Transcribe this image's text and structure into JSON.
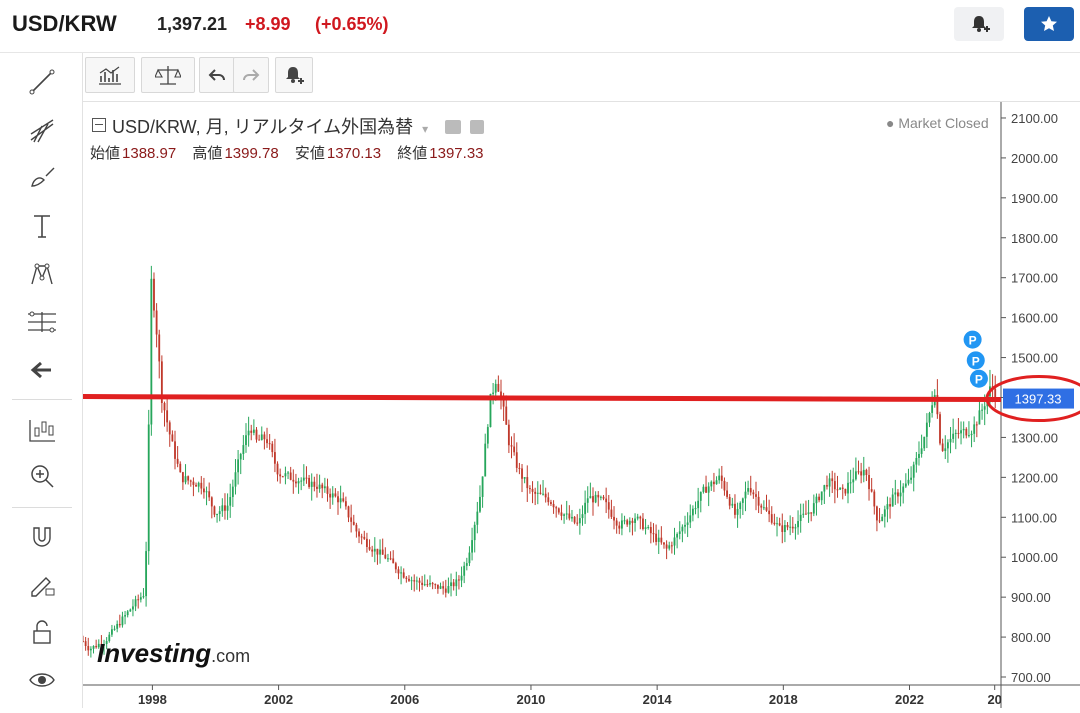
{
  "header": {
    "symbol": "USD/KRW",
    "price": "1,397.21",
    "change": "+8.99",
    "change_pct": "(+0.65%)",
    "alert_icon": "bell-plus-icon",
    "star_icon": "star-icon"
  },
  "sidebar": {
    "tools": [
      "trendline-icon",
      "fib-icon",
      "brush-icon",
      "text-icon",
      "pattern-icon",
      "measure-icon",
      "back-arrow-icon",
      "candles-icon",
      "zoom-in-icon",
      "magnet-icon",
      "pencil-lock-icon",
      "unlock-icon",
      "eye-icon"
    ]
  },
  "toolbar": {
    "buttons": [
      "indicators-icon",
      "compare-icon",
      "undo-icon",
      "redo-icon",
      "alert-add-icon"
    ]
  },
  "legend": {
    "title": "USD/KRW, 月, リアルタイム外国為替",
    "open_label": "始値",
    "open": "1388.97",
    "high_label": "高値",
    "high": "1399.78",
    "low_label": "安値",
    "low": "1370.13",
    "close_label": "終値",
    "close": "1397.33",
    "status": "Market Closed"
  },
  "logo": {
    "main": "Investing",
    "suffix": ".com"
  },
  "colors": {
    "up": "#26a65b",
    "down": "#c0392b",
    "hline": "#e02020",
    "badge": "#2f6fe4",
    "marker": "#2196f3"
  },
  "chart_data": {
    "type": "line",
    "ylim": [
      680,
      2140
    ],
    "yticks": [
      "2100.00",
      "2000.00",
      "1900.00",
      "1800.00",
      "1700.00",
      "1600.00",
      "1500.00",
      "1400.00",
      "1300.00",
      "1200.00",
      "1100.00",
      "1000.00",
      "900.00",
      "800.00",
      "700.00"
    ],
    "ytick_values": [
      2100,
      2000,
      1900,
      1800,
      1700,
      1600,
      1500,
      1400,
      1300,
      1200,
      1100,
      1000,
      900,
      800,
      700
    ],
    "xlim": [
      1995.8,
      2024.9
    ],
    "xticks": [
      "1998",
      "2002",
      "2006",
      "2010",
      "2014",
      "2018",
      "2022",
      "20"
    ],
    "xtick_values": [
      1998,
      2002,
      2006,
      2010,
      2014,
      2018,
      2022,
      2024.7
    ],
    "horizontal_line": 1397.33,
    "last_price_label": "1397.33",
    "markers": [
      {
        "x": 2024.0,
        "y": 1545,
        "label": "P"
      },
      {
        "x": 2024.1,
        "y": 1493,
        "label": "P"
      },
      {
        "x": 2024.2,
        "y": 1447,
        "label": "P"
      }
    ],
    "series": [
      {
        "x": [
          1995.8,
          1996.0,
          1996.5,
          1997.0,
          1997.5,
          1997.75,
          1997.85,
          1997.95,
          1998.1,
          1998.3,
          1998.6,
          1998.9,
          1999.2,
          1999.6,
          2000.0,
          2000.4,
          2000.8,
          2001.1,
          2001.3,
          2001.6,
          2002.0,
          2002.4,
          2002.8,
          2003.2,
          2003.6,
          2004.0,
          2004.5,
          2005.0,
          2005.4,
          2005.9,
          2006.3,
          2006.8,
          2007.3,
          2007.7,
          2008.0,
          2008.4,
          2008.7,
          2008.9,
          2009.1,
          2009.3,
          2009.6,
          2010.0,
          2010.5,
          2011.0,
          2011.5,
          2011.8,
          2012.3,
          2012.8,
          2013.3,
          2013.8,
          2014.3,
          2014.6,
          2015.0,
          2015.5,
          2016.0,
          2016.5,
          2016.9,
          2017.3,
          2017.9,
          2018.3,
          2018.9,
          2019.4,
          2019.9,
          2020.2,
          2020.6,
          2021.0,
          2021.5,
          2022.0,
          2022.5,
          2022.8,
          2023.0,
          2023.5,
          2024.0,
          2024.3,
          2024.6,
          2024.75
        ],
        "y": [
          790,
          770,
          790,
          840,
          890,
          910,
          1130,
          1700,
          1600,
          1400,
          1290,
          1200,
          1190,
          1180,
          1110,
          1130,
          1260,
          1330,
          1290,
          1300,
          1210,
          1200,
          1190,
          1180,
          1160,
          1140,
          1060,
          1020,
          1000,
          960,
          940,
          930,
          920,
          940,
          1000,
          1160,
          1390,
          1450,
          1380,
          1290,
          1220,
          1160,
          1150,
          1110,
          1080,
          1150,
          1140,
          1080,
          1100,
          1060,
          1020,
          1050,
          1100,
          1170,
          1200,
          1100,
          1180,
          1130,
          1070,
          1080,
          1120,
          1190,
          1160,
          1200,
          1220,
          1090,
          1150,
          1190,
          1310,
          1420,
          1270,
          1310,
          1320,
          1370,
          1430,
          1397
        ]
      }
    ]
  }
}
